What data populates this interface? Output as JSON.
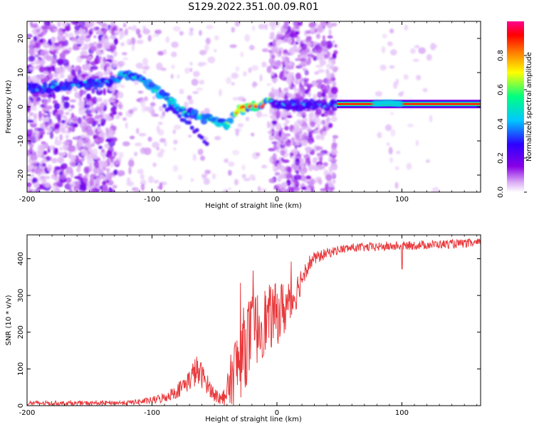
{
  "figure": {
    "title": "S129.2022.351.00.09.R01"
  },
  "chart_data": [
    {
      "type": "heatmap",
      "title": "S129.2022.351.00.09.R01",
      "xlabel": "Height of straight line (km)",
      "ylabel": "Frequency (Hz)",
      "xlim": [
        -200,
        163
      ],
      "ylim": [
        -25,
        25
      ],
      "x_ticks": [
        -200,
        -100,
        0,
        100
      ],
      "y_ticks": [
        -20,
        -10,
        0,
        10,
        20
      ],
      "grid": false,
      "colorbar": {
        "label": "Normalized spectral amplitude",
        "range": [
          0.0,
          1.0
        ],
        "ticks": [
          "0.0",
          "0.2",
          "0.4",
          "0.6",
          "0.8"
        ],
        "colormap": [
          "#ffffff",
          "#d9a8f5",
          "#8a00e6",
          "#2d00ff",
          "#00c8ff",
          "#00ff80",
          "#ffff00",
          "#ff7a00",
          "#ff0000",
          "#ff0090"
        ]
      },
      "ridge": {
        "x": [
          -200,
          -190,
          -180,
          -170,
          -160,
          -150,
          -140,
          -130,
          -125,
          -120,
          -110,
          -100,
          -90,
          -80,
          -70,
          -60,
          -50,
          -40,
          -30,
          -20,
          -10,
          -5,
          0,
          10,
          20,
          30,
          40,
          50,
          60,
          70,
          80,
          90,
          100,
          110,
          120,
          130,
          140,
          150,
          163
        ],
        "y": [
          6,
          5,
          6,
          6,
          7,
          7,
          7,
          8,
          9,
          9.5,
          8,
          6,
          3,
          0,
          -2,
          -3,
          -4,
          -5,
          -1,
          0,
          1,
          2,
          1,
          0.5,
          0.5,
          0.5,
          0.5,
          0.8,
          0.8,
          0.8,
          1,
          1.2,
          0.8,
          0.8,
          0.8,
          0.8,
          0.8,
          0.8,
          0.8
        ]
      },
      "branch": {
        "x": [
          -90,
          -80,
          -70,
          -60,
          -55
        ],
        "y": [
          0,
          -2,
          -5,
          -9,
          -12
        ]
      }
    },
    {
      "type": "line",
      "xlabel": "Height of straight line (km)",
      "ylabel": "SNR (10 * v/v)",
      "xlim": [
        -200,
        163
      ],
      "ylim": [
        0,
        465
      ],
      "x_ticks": [
        -200,
        -100,
        0,
        100
      ],
      "y_ticks": [
        0,
        100,
        200,
        300,
        400
      ],
      "grid": false,
      "color": "#e8393c",
      "series": [
        {
          "x": [
            -200,
            -150,
            -120,
            -100,
            -90,
            -80,
            -70,
            -65,
            -60,
            -55,
            -50,
            -45,
            -40,
            -35,
            -30,
            -25,
            -20,
            -15,
            -10,
            -5,
            0,
            5,
            10,
            15,
            20,
            25,
            30,
            40,
            50,
            60,
            80,
            100,
            120,
            140,
            163
          ],
          "y": [
            7,
            7,
            8,
            14,
            22,
            40,
            70,
            95,
            82,
            55,
            30,
            18,
            35,
            90,
            120,
            170,
            195,
            215,
            230,
            240,
            250,
            262,
            275,
            305,
            350,
            385,
            400,
            415,
            425,
            430,
            432,
            435,
            438,
            440,
            443
          ],
          "amp": [
            6,
            6,
            6,
            10,
            14,
            20,
            30,
            45,
            35,
            25,
            20,
            20,
            40,
            90,
            110,
            120,
            110,
            100,
            95,
            90,
            85,
            80,
            70,
            50,
            35,
            25,
            18,
            14,
            12,
            12,
            12,
            12,
            12,
            12,
            12
          ]
        }
      ]
    }
  ]
}
